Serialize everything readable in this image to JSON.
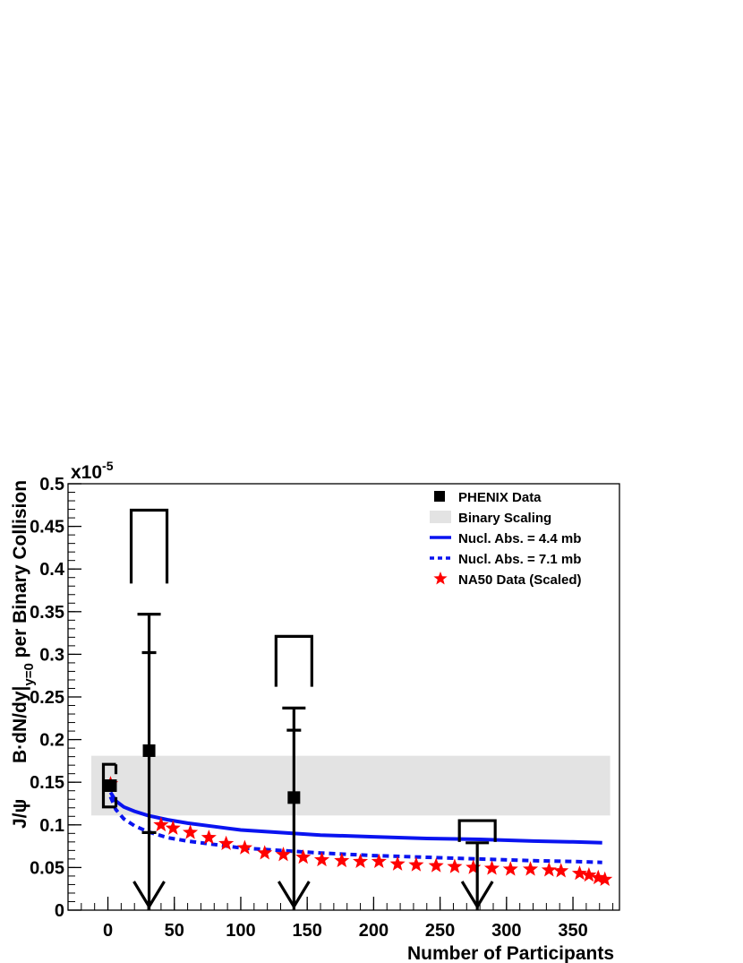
{
  "chart_data": {
    "type": "scatter",
    "xlabel": "Number of Participants",
    "ylabel_main": "B·dN/dy|",
    "ylabel_sub": "y=0",
    "ylabel_tail": " per Binary Collision",
    "ylabel_prefix": "J/ψ",
    "exponent_main": "x10",
    "exponent_sup": "-5",
    "xlim": [
      -30,
      385
    ],
    "ylim": [
      0,
      0.5
    ],
    "x_ticks": [
      0,
      50,
      100,
      150,
      200,
      250,
      300,
      350
    ],
    "x_tick_labels": [
      "0",
      "50",
      "100",
      "150",
      "200",
      "250",
      "300",
      "350"
    ],
    "y_ticks": [
      0,
      0.05,
      0.1,
      0.15,
      0.2,
      0.25,
      0.3,
      0.35,
      0.4,
      0.45,
      0.5
    ],
    "y_tick_labels": [
      "0",
      "0.05",
      "0.1",
      "0.15",
      "0.2",
      "0.25",
      "0.3",
      "0.35",
      "0.4",
      "0.45",
      "0.5"
    ],
    "legend_position": "top-right",
    "legend": [
      {
        "label": "PHENIX Data",
        "marker": "square"
      },
      {
        "label": "Binary Scaling",
        "marker": "band"
      },
      {
        "label": "Nucl. Abs. = 4.4 mb",
        "marker": "solid-line"
      },
      {
        "label": "Nucl. Abs. = 7.1 mb",
        "marker": "dashed-line"
      },
      {
        "label": "NA50 Data (Scaled)",
        "marker": "star"
      }
    ],
    "colors": {
      "phenix": "#000000",
      "band": "#e3e3e3",
      "abs": "#0a14f0",
      "na50": "#ff0000"
    },
    "binary_band": {
      "x": [
        -30,
        378
      ],
      "y": [
        0.111,
        0.181
      ]
    },
    "phenix": [
      {
        "x": 2,
        "y": 0.146,
        "stat_lo": 0.146,
        "stat_hi": 0.146,
        "sys_lo": 0.121,
        "sys_hi": 0.171,
        "sys_bracket": true
      },
      {
        "x": 31,
        "y": 0.187,
        "stat_lo": 0.091,
        "stat_hi": 0.302,
        "upper": 0.347,
        "arrow_to": 0.0,
        "sys_box": [
          0.383,
          0.469
        ]
      },
      {
        "x": 140,
        "y": 0.132,
        "stat_hi": 0.211,
        "upper": 0.237,
        "arrow_to": 0.0,
        "sys_box": [
          0.262,
          0.321
        ]
      },
      {
        "x": 278,
        "upper": 0.079,
        "arrow_to": 0.0,
        "sys_box": [
          0.08,
          0.105
        ]
      }
    ],
    "abs_44": {
      "x": [
        2,
        6,
        12,
        20,
        30,
        45,
        60,
        80,
        100,
        130,
        160,
        200,
        240,
        280,
        320,
        350,
        372
      ],
      "y": [
        0.138,
        0.128,
        0.121,
        0.116,
        0.111,
        0.106,
        0.102,
        0.098,
        0.094,
        0.091,
        0.088,
        0.086,
        0.084,
        0.083,
        0.081,
        0.08,
        0.079
      ]
    },
    "abs_71": {
      "x": [
        2,
        6,
        12,
        20,
        30,
        45,
        60,
        80,
        100,
        130,
        160,
        200,
        240,
        280,
        320,
        350,
        372
      ],
      "y": [
        0.133,
        0.118,
        0.107,
        0.099,
        0.092,
        0.085,
        0.081,
        0.077,
        0.073,
        0.07,
        0.067,
        0.064,
        0.062,
        0.06,
        0.058,
        0.057,
        0.056
      ]
    },
    "na50": {
      "x": [
        2,
        40,
        49,
        62,
        76,
        89,
        103,
        118,
        132,
        147,
        161,
        176,
        190,
        204,
        218,
        232,
        247,
        261,
        275,
        289,
        303,
        318,
        332,
        341,
        355,
        362,
        369,
        374
      ],
      "y": [
        0.148,
        0.1,
        0.096,
        0.091,
        0.085,
        0.078,
        0.073,
        0.067,
        0.065,
        0.062,
        0.059,
        0.058,
        0.057,
        0.057,
        0.054,
        0.053,
        0.052,
        0.051,
        0.05,
        0.049,
        0.048,
        0.048,
        0.047,
        0.046,
        0.043,
        0.041,
        0.038,
        0.036
      ]
    }
  }
}
